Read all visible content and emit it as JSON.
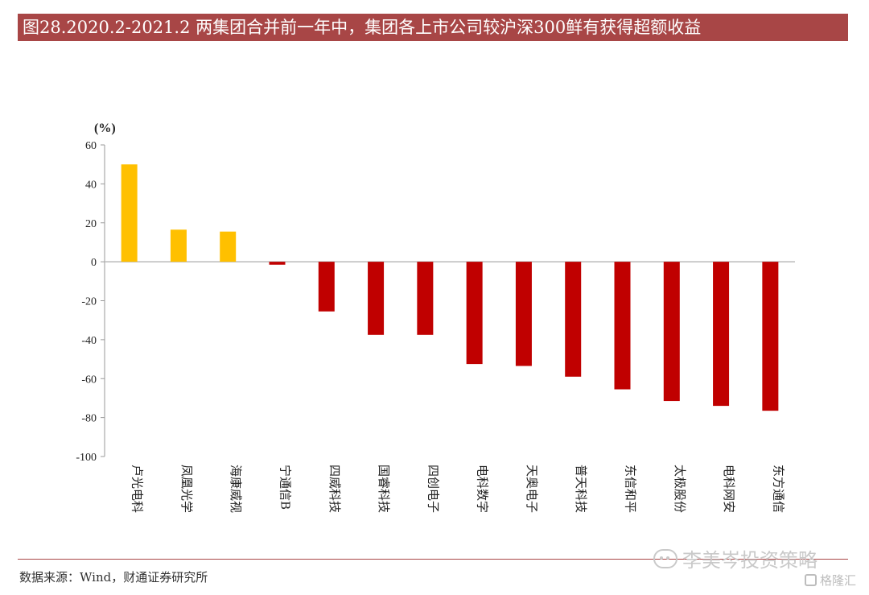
{
  "title": "图28.2020.2-2021.2 两集团合并前一年中，集团各上市公司较沪深300鲜有获得超额收益",
  "source": "数据来源：Wind，财通证券研究所",
  "watermark": "李美岑投资策略",
  "watermark2": "格隆汇",
  "colors": {
    "positive": "#ffc000",
    "negative": "#c00000",
    "title_bg": "#a84646"
  },
  "chart_data": {
    "type": "bar",
    "unit_label": "(%)",
    "categories": [
      "卢光电科",
      "凤凰光学",
      "海康威视",
      "宁通信B",
      "四威科技",
      "国睿科技",
      "四创电子",
      "电科数字",
      "天奥电子",
      "普天科技",
      "东信和平",
      "太极股份",
      "电科网安",
      "东方通信"
    ],
    "values": [
      50,
      16.5,
      15.5,
      -1.5,
      -25.5,
      -37.5,
      -37.5,
      -52.5,
      -53.5,
      -59,
      -65.5,
      -71.5,
      -74,
      -76.5
    ],
    "ylim": [
      -100,
      60
    ],
    "yticks": [
      60,
      40,
      20,
      0,
      -20,
      -40,
      -60,
      -80,
      -100
    ],
    "grid": false,
    "legend": "none"
  }
}
